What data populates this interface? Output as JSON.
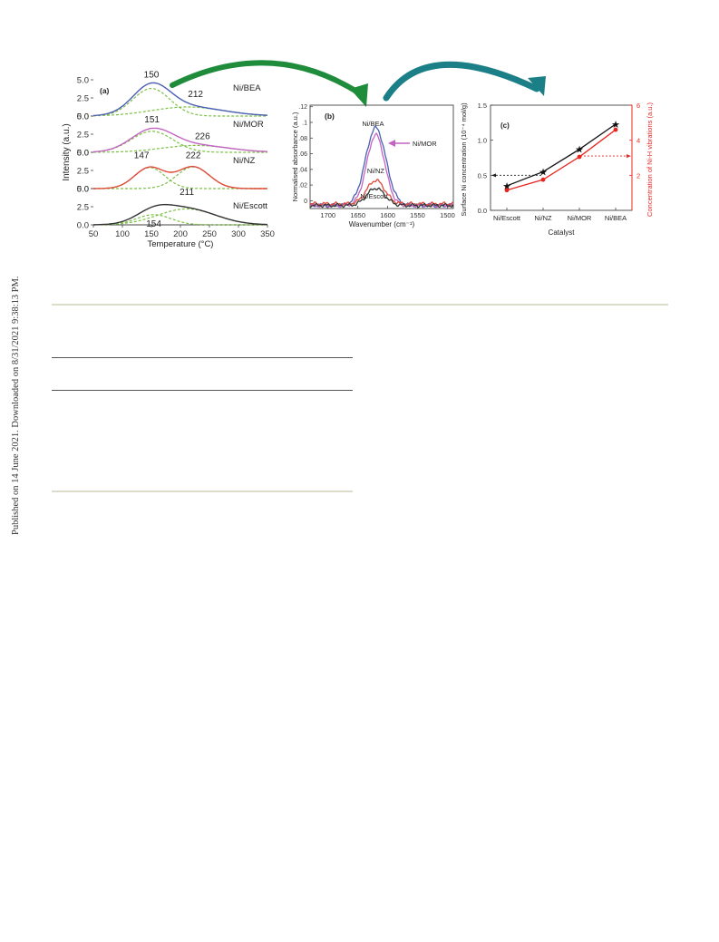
{
  "sidebar": {
    "text": "Published on 14 June 2021. Downloaded on 8/31/2021 9:38:13 PM."
  },
  "colors": {
    "green_arrow": "#1e8c3a",
    "teal_arrow": "#1a7f86",
    "fit_dashed": "#7bc043",
    "Ni/BEA": "#4a5fb3",
    "Ni/MOR": "#c264c2",
    "Ni/NZ": "#e04a3a",
    "Ni/Escott": "#333333",
    "red_axis": "#e8261f",
    "rule_light": "#dcdcc8",
    "rule_dark": "#555555"
  },
  "chart_data": [
    {
      "type": "line",
      "panel_label": "(a)",
      "xlabel": "Temperature (°C)",
      "ylabel": "Intensity (a.u.)",
      "xlim": [
        50,
        350
      ],
      "xticks": [
        "50",
        "100",
        "150",
        "200",
        "250",
        "300",
        "350"
      ],
      "yticks": [
        "0.0",
        "2.5",
        "5.0"
      ],
      "ylim_each": [
        0,
        5.0
      ],
      "series": [
        {
          "name": "Ni/BEA",
          "peaks": [
            {
              "center": 150,
              "height": 3.8,
              "width": 32
            },
            {
              "center": 212,
              "height": 1.25,
              "width": 62
            }
          ],
          "labels": [
            {
              "text": "150",
              "x": 150,
              "y": 5.3
            },
            {
              "text": "212",
              "x": 226,
              "y": 2.6
            }
          ]
        },
        {
          "name": "Ni/MOR",
          "peaks": [
            {
              "center": 151,
              "height": 2.9,
              "width": 36
            },
            {
              "center": 226,
              "height": 0.95,
              "width": 58
            }
          ],
          "labels": [
            {
              "text": "151",
              "x": 151,
              "y": 4.1
            },
            {
              "text": "226",
              "x": 238,
              "y": 1.8
            }
          ]
        },
        {
          "name": "Ni/NZ",
          "peaks": [
            {
              "center": 147,
              "height": 2.9,
              "width": 26
            },
            {
              "center": 222,
              "height": 3.0,
              "width": 28
            }
          ],
          "labels": [
            {
              "text": "147",
              "x": 133,
              "y": 4.2
            },
            {
              "text": "222",
              "x": 222,
              "y": 4.2
            }
          ]
        },
        {
          "name": "Ni/Escott",
          "peaks": [
            {
              "center": 154,
              "height": 1.4,
              "width": 30
            },
            {
              "center": 211,
              "height": 2.2,
              "width": 50
            }
          ],
          "labels": [
            {
              "text": "211",
              "x": 211,
              "y": 4.1
            },
            {
              "text": "154",
              "x": 154,
              "y": -0.25
            }
          ]
        }
      ]
    },
    {
      "type": "line",
      "panel_label": "(b)",
      "xlabel": "Wavenumber (cm⁻¹)",
      "ylabel": "Normalised absorbance (a.u.)",
      "xlim": [
        1730,
        1490
      ],
      "ylim": [
        -0.01,
        0.122
      ],
      "xticks": [
        {
          "label": "1700",
          "value": 1700
        },
        {
          "label": "1650",
          "value": 1650
        },
        {
          "label": "1600",
          "value": 1600
        },
        {
          "label": "1550",
          "value": 1550
        },
        {
          "label": "1500",
          "value": 1500
        }
      ],
      "yticks": [
        {
          "label": "0",
          "value": 0
        },
        {
          "label": ".02",
          "value": 0.02
        },
        {
          "label": ".04",
          "value": 0.04
        },
        {
          "label": ".06",
          "value": 0.06
        },
        {
          "label": ".08",
          "value": 0.08
        },
        {
          "label": ".1",
          "value": 0.1
        },
        {
          "label": ".12",
          "value": 0.12
        }
      ],
      "peak_center": 1620,
      "series": [
        {
          "name": "Ni/BEA",
          "peak": 0.093,
          "width": 17,
          "base": -0.006
        },
        {
          "name": "Ni/MOR",
          "peak": 0.084,
          "width": 15,
          "base": -0.006
        },
        {
          "name": "Ni/NZ",
          "peak": 0.026,
          "width": 15,
          "base": -0.004
        },
        {
          "name": "Ni/Escott",
          "peak": 0.016,
          "width": 15,
          "base": -0.006
        }
      ],
      "annotations": {
        "Ni/BEA": "Ni/BEA",
        "Ni/MOR": "Ni/MOR",
        "Ni/NZ": "Ni/NZ",
        "Ni/Escott": "Ni/Escott"
      }
    },
    {
      "type": "line",
      "panel_label": "(c)",
      "xlabel": "Catalyst",
      "ylabel_left": "Surface Ni concentration (10⁻⁴ mol/g)",
      "ylabel_right": "Concentration of Ni-H vibrations (a.u.)",
      "categories": [
        "Ni/Escott",
        "Ni/NZ",
        "Ni/MOR",
        "Ni/BEA"
      ],
      "ylim_left": [
        0,
        1.5
      ],
      "ylim_right": [
        0,
        6
      ],
      "yticks_left": [
        "0.0",
        "0.5",
        "1.0",
        "1.5"
      ],
      "yticks_right": [
        "2",
        "4",
        "6"
      ],
      "series": [
        {
          "name": "Surface Ni concentration",
          "axis": "left",
          "values": [
            0.35,
            0.55,
            0.87,
            1.23
          ]
        },
        {
          "name": "Concentration of Ni-H vibrations",
          "axis": "right",
          "values": [
            1.15,
            1.75,
            3.05,
            4.6
          ]
        }
      ]
    }
  ]
}
